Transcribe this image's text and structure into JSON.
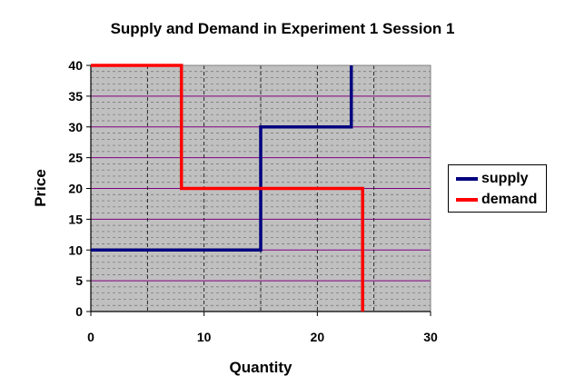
{
  "chart_data": {
    "type": "line",
    "title": "Supply and Demand in Experiment 1 Session 1",
    "xlabel": "Quantity",
    "ylabel": "Price",
    "xlim": [
      0,
      30
    ],
    "ylim": [
      0,
      40
    ],
    "x_ticks": [
      0,
      10,
      20,
      30
    ],
    "y_ticks": [
      0,
      5,
      10,
      15,
      20,
      25,
      30,
      35,
      40
    ],
    "grid": true,
    "plot_background": "#c0c0c0",
    "legend_position": "right",
    "series": [
      {
        "name": "supply",
        "color": "#000080",
        "points": [
          [
            0,
            10
          ],
          [
            15,
            10
          ],
          [
            15,
            30
          ],
          [
            23,
            30
          ],
          [
            23,
            40
          ]
        ]
      },
      {
        "name": "demand",
        "color": "#ff0000",
        "points": [
          [
            0,
            40
          ],
          [
            8,
            40
          ],
          [
            8,
            20
          ],
          [
            24,
            20
          ],
          [
            24,
            0
          ]
        ]
      }
    ]
  }
}
